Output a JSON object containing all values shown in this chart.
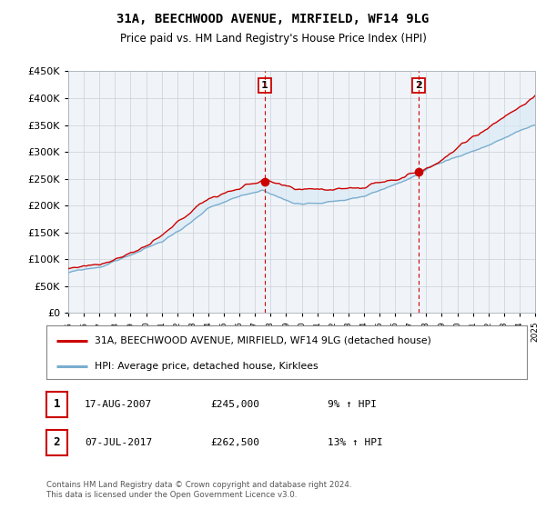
{
  "title": "31A, BEECHWOOD AVENUE, MIRFIELD, WF14 9LG",
  "subtitle": "Price paid vs. HM Land Registry's House Price Index (HPI)",
  "ylim": [
    0,
    450000
  ],
  "ytick_vals": [
    0,
    50000,
    100000,
    150000,
    200000,
    250000,
    300000,
    350000,
    400000,
    450000
  ],
  "x_start_year": 1995,
  "x_end_year": 2025,
  "sale1_date": 2007.63,
  "sale1_price": 245000,
  "sale2_date": 2017.52,
  "sale2_price": 262500,
  "line_color_red": "#cc0000",
  "line_color_blue": "#7aadcf",
  "fill_color_blue": "#d6e9f5",
  "vline_color": "#cc0000",
  "legend_label_red": "31A, BEECHWOOD AVENUE, MIRFIELD, WF14 9LG (detached house)",
  "legend_label_blue": "HPI: Average price, detached house, Kirklees",
  "table_row1_num": "1",
  "table_row1_date": "17-AUG-2007",
  "table_row1_price": "£245,000",
  "table_row1_hpi": "9% ↑ HPI",
  "table_row2_num": "2",
  "table_row2_date": "07-JUL-2017",
  "table_row2_price": "£262,500",
  "table_row2_hpi": "13% ↑ HPI",
  "footnote": "Contains HM Land Registry data © Crown copyright and database right 2024.\nThis data is licensed under the Open Government Licence v3.0.",
  "bg_color": "#ffffff",
  "plot_bg_color": "#f0f4f8"
}
